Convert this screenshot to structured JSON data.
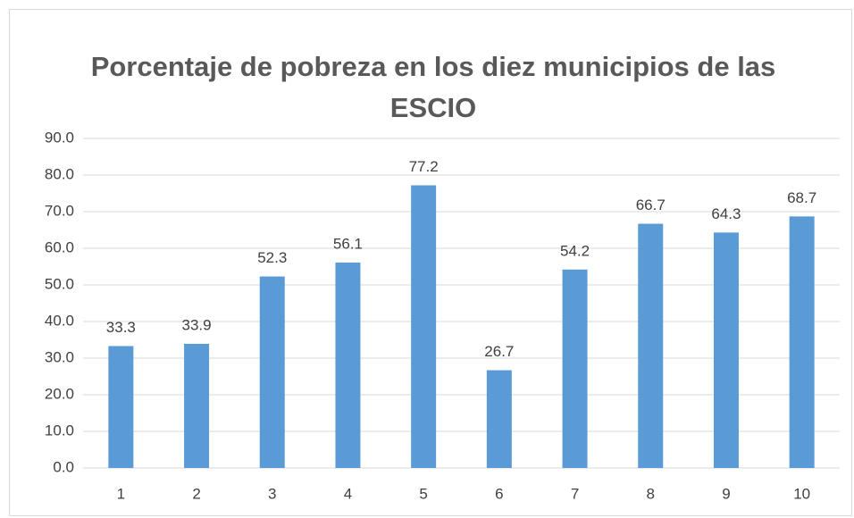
{
  "chart_data": {
    "type": "bar",
    "title": "Porcentaje de pobreza en los diez municipios de las ESCIO",
    "categories": [
      "1",
      "2",
      "3",
      "4",
      "5",
      "6",
      "7",
      "8",
      "9",
      "10"
    ],
    "values": [
      33.3,
      33.9,
      52.3,
      56.1,
      77.2,
      26.7,
      54.2,
      66.7,
      64.3,
      68.7
    ],
    "color": "#5b9bd5",
    "ylim": [
      0,
      90
    ],
    "yticks": [
      {
        "value": 0,
        "label": "0.0"
      },
      {
        "value": 10,
        "label": "10.0"
      },
      {
        "value": 20,
        "label": "20.0"
      },
      {
        "value": 30,
        "label": "30.0"
      },
      {
        "value": 40,
        "label": "40.0"
      },
      {
        "value": 50,
        "label": "50.0"
      },
      {
        "value": 60,
        "label": "60.0"
      },
      {
        "value": 70,
        "label": "70.0"
      },
      {
        "value": 80,
        "label": "80.0"
      },
      {
        "value": 90,
        "label": "90.0"
      }
    ],
    "grid": true
  }
}
